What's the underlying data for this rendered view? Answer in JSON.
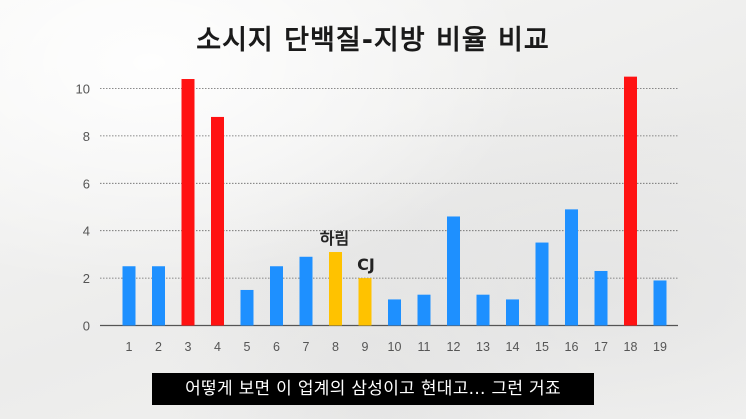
{
  "title": "소시지 단백질-지방 비율 비교",
  "subtitle_caption": "어떻게 보면 이 업계의 삼성이고 현대고... 그런 거죠",
  "colors": {
    "blue": "#1e90ff",
    "red": "#ff1212",
    "yellow": "#ffc200"
  },
  "chart_data": {
    "type": "bar",
    "categories": [
      "1",
      "2",
      "3",
      "4",
      "5",
      "6",
      "7",
      "8",
      "9",
      "10",
      "11",
      "12",
      "13",
      "14",
      "15",
      "16",
      "17",
      "18",
      "19"
    ],
    "values": [
      2.5,
      2.5,
      10.4,
      8.8,
      1.5,
      2.5,
      2.9,
      3.1,
      2.0,
      1.1,
      1.3,
      4.6,
      1.3,
      1.1,
      3.5,
      4.9,
      2.3,
      10.5,
      1.9
    ],
    "bar_colors": [
      "blue",
      "blue",
      "red",
      "red",
      "blue",
      "blue",
      "blue",
      "yellow",
      "yellow",
      "blue",
      "blue",
      "blue",
      "blue",
      "blue",
      "blue",
      "blue",
      "blue",
      "red",
      "blue"
    ],
    "yticks": [
      0,
      2,
      4,
      6,
      8,
      10
    ],
    "ylim": [
      0,
      11.5
    ],
    "grid": true,
    "annotations": [
      {
        "category": "8",
        "text": "하림"
      },
      {
        "category": "9",
        "text": "CJ"
      }
    ]
  }
}
